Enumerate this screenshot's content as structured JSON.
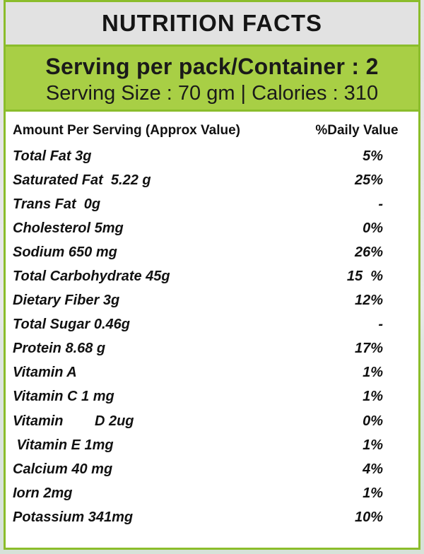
{
  "title": "NUTRITION FACTS",
  "serving": {
    "line1": "Serving per pack/Container : 2",
    "line2": "Serving Size : 70 gm | Calories : 310"
  },
  "header": {
    "amount": "Amount Per Serving (Approx Value)",
    "daily_value": "%Daily Value"
  },
  "rows": [
    {
      "name": "Total Fat 3g",
      "dv": "5%"
    },
    {
      "name": "Saturated Fat  5.22 g",
      "dv": "25%"
    },
    {
      "name": "Trans Fat  0g",
      "dv": "-"
    },
    {
      "name": "Cholesterol 5mg",
      "dv": "0%"
    },
    {
      "name": "Sodium 650 mg",
      "dv": "26%"
    },
    {
      "name": "Total Carbohydrate 45g",
      "dv": "15  %"
    },
    {
      "name": "Dietary Fiber 3g",
      "dv": "12%"
    },
    {
      "name": "Total Sugar 0.46g",
      "dv": "-"
    },
    {
      "name": "Protein 8.68 g",
      "dv": "17%"
    },
    {
      "name": "Vitamin A",
      "dv": "1%"
    },
    {
      "name": "Vitamin C 1 mg",
      "dv": "1%"
    },
    {
      "name": "Vitamin        D 2ug",
      "dv": "0%"
    },
    {
      "name": " Vitamin E 1mg",
      "dv": "1%"
    },
    {
      "name": "Calcium 40 mg",
      "dv": "4%"
    },
    {
      "name": "Iorn 2mg",
      "dv": "1%"
    },
    {
      "name": "Potassium 341mg",
      "dv": "10%"
    }
  ],
  "colors": {
    "accent_green": "#a8cf45",
    "border_green": "#8bbd2b",
    "title_bg": "#e2e2e2"
  }
}
